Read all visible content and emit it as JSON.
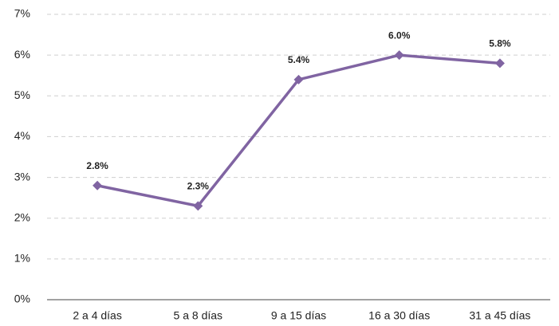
{
  "chart_data": {
    "type": "line",
    "categories": [
      "2 a 4 días",
      "5 a 8 días",
      "9 a 15 días",
      "16 a 30 días",
      "31 a 45 días"
    ],
    "series": [
      {
        "color": "#8064a2",
        "values": [
          2.8,
          2.3,
          5.4,
          6.0,
          5.8
        ],
        "value_labels": [
          "2.8%",
          "2.3%",
          "5.4%",
          "6.0%",
          "5.8%"
        ]
      }
    ],
    "ylim": [
      0,
      7
    ],
    "yticks": [
      {
        "value": 0,
        "label": "0%"
      },
      {
        "value": 1,
        "label": "1%"
      },
      {
        "value": 2,
        "label": "2%"
      },
      {
        "value": 3,
        "label": "3%"
      },
      {
        "value": 4,
        "label": "4%"
      },
      {
        "value": 5,
        "label": "5%"
      },
      {
        "value": 6,
        "label": "6%"
      },
      {
        "value": 7,
        "label": "7%"
      }
    ],
    "grid": true
  }
}
